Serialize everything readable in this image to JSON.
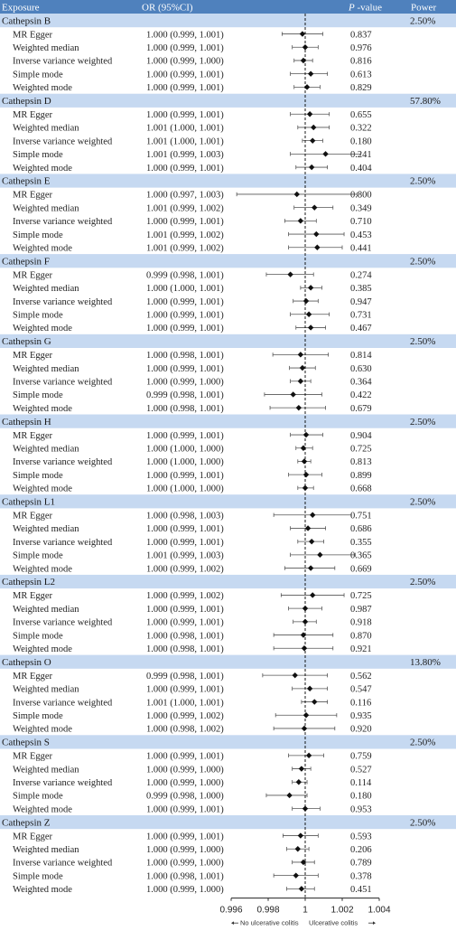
{
  "header": {
    "exposure": "Exposure",
    "or": "OR (95%CI)",
    "p_prefix": "P",
    "p_suffix": " -value",
    "power": "Power"
  },
  "chart_data": {
    "type": "scatter",
    "subtype": "forest",
    "xlim": [
      0.996,
      1.004
    ],
    "reference_line": 1,
    "ticks": [
      "0.996",
      "0.998",
      "1",
      "1.002",
      "1.004"
    ],
    "legend_left": "No ulcerative colitis",
    "legend_right": "Ulcerative colitis",
    "groups": [
      {
        "name": "Cathepsin B",
        "power": "2.50%",
        "rows": [
          {
            "method": "MR Egger",
            "or_text": "1.000 (0.999, 1.001)",
            "or": 0.99985,
            "lo": 0.99875,
            "hi": 1.00095,
            "p": "0.837"
          },
          {
            "method": "Weighted median",
            "or_text": "1.000 (0.999, 1.001)",
            "or": 1.0,
            "lo": 0.9993,
            "hi": 1.0007,
            "p": "0.976"
          },
          {
            "method": "Inverse variance weighted",
            "or_text": "1.000 (0.999, 1.000)",
            "or": 0.9999,
            "lo": 0.9994,
            "hi": 1.0004,
            "p": "0.816"
          },
          {
            "method": "Simple mode",
            "or_text": "1.000 (0.999, 1.001)",
            "or": 1.0003,
            "lo": 0.9992,
            "hi": 1.0012,
            "p": "0.613"
          },
          {
            "method": "Weighted mode",
            "or_text": "1.000 (0.999, 1.001)",
            "or": 1.0001,
            "lo": 0.9994,
            "hi": 1.0008,
            "p": "0.829"
          }
        ]
      },
      {
        "name": "Cathepsin D",
        "power": "57.80%",
        "rows": [
          {
            "method": "MR Egger",
            "or_text": "1.000 (0.999, 1.001)",
            "or": 1.00025,
            "lo": 0.9992,
            "hi": 1.0013,
            "p": "0.655"
          },
          {
            "method": "Weighted median",
            "or_text": "1.001 (1.000, 1.001)",
            "or": 1.00045,
            "lo": 0.9996,
            "hi": 1.0013,
            "p": "0.322"
          },
          {
            "method": "Inverse variance weighted",
            "or_text": "1.001 (1.000, 1.001)",
            "or": 1.0004,
            "lo": 0.99985,
            "hi": 1.00095,
            "p": "0.180"
          },
          {
            "method": "Simple mode",
            "or_text": "1.001 (0.999, 1.003)",
            "or": 1.0011,
            "lo": 0.9992,
            "hi": 1.003,
            "p": "0.241"
          },
          {
            "method": "Weighted mode",
            "or_text": "1.000 (0.999, 1.001)",
            "or": 1.00035,
            "lo": 0.9995,
            "hi": 1.0012,
            "p": "0.404"
          }
        ]
      },
      {
        "name": "Cathepsin E",
        "power": "2.50%",
        "rows": [
          {
            "method": "MR Egger",
            "or_text": "1.000 (0.997, 1.003)",
            "or": 0.99955,
            "lo": 0.9963,
            "hi": 1.0028,
            "p": "0.800"
          },
          {
            "method": "Weighted median",
            "or_text": "1.001 (0.999, 1.002)",
            "or": 1.0005,
            "lo": 0.9994,
            "hi": 1.0015,
            "p": "0.349"
          },
          {
            "method": "Inverse variance weighted",
            "or_text": "1.000 (0.999, 1.001)",
            "or": 0.99975,
            "lo": 0.9989,
            "hi": 1.0006,
            "p": "0.710"
          },
          {
            "method": "Simple mode",
            "or_text": "1.001 (0.999, 1.002)",
            "or": 1.0006,
            "lo": 0.9991,
            "hi": 1.0021,
            "p": "0.453"
          },
          {
            "method": "Weighted mode",
            "or_text": "1.001 (0.999, 1.002)",
            "or": 1.00065,
            "lo": 0.9991,
            "hi": 1.002,
            "p": "0.441"
          }
        ]
      },
      {
        "name": "Cathepsin F",
        "power": "2.50%",
        "rows": [
          {
            "method": "MR Egger",
            "or_text": "0.999 (0.998, 1.001)",
            "or": 0.9992,
            "lo": 0.9979,
            "hi": 1.00045,
            "p": "0.274"
          },
          {
            "method": "Weighted median",
            "or_text": "1.000 (1.000, 1.001)",
            "or": 1.0003,
            "lo": 0.99975,
            "hi": 1.0009,
            "p": "0.385"
          },
          {
            "method": "Inverse variance weighted",
            "or_text": "1.000 (0.999, 1.001)",
            "or": 1.00005,
            "lo": 0.99935,
            "hi": 1.0007,
            "p": "0.947"
          },
          {
            "method": "Simple mode",
            "or_text": "1.000 (0.999, 1.001)",
            "or": 1.0002,
            "lo": 0.9992,
            "hi": 1.0013,
            "p": "0.731"
          },
          {
            "method": "Weighted mode",
            "or_text": "1.000 (0.999, 1.001)",
            "or": 1.0003,
            "lo": 0.9995,
            "hi": 1.0011,
            "p": "0.467"
          }
        ]
      },
      {
        "name": "Cathepsin G",
        "power": "2.50%",
        "rows": [
          {
            "method": "MR Egger",
            "or_text": "1.000 (0.998, 1.001)",
            "or": 0.99975,
            "lo": 0.99825,
            "hi": 1.00125,
            "p": "0.814"
          },
          {
            "method": "Weighted median",
            "or_text": "1.000 (0.999, 1.001)",
            "or": 0.99985,
            "lo": 0.99915,
            "hi": 1.00055,
            "p": "0.630"
          },
          {
            "method": "Inverse variance weighted",
            "or_text": "1.000 (0.999, 1.000)",
            "or": 0.99975,
            "lo": 0.9992,
            "hi": 1.0003,
            "p": "0.364"
          },
          {
            "method": "Simple mode",
            "or_text": "0.999 (0.998, 1.001)",
            "or": 0.99935,
            "lo": 0.9978,
            "hi": 1.0009,
            "p": "0.422"
          },
          {
            "method": "Weighted mode",
            "or_text": "1.000 (0.998, 1.001)",
            "or": 0.99965,
            "lo": 0.9981,
            "hi": 1.0011,
            "p": "0.679"
          }
        ]
      },
      {
        "name": "Cathepsin H",
        "power": "2.50%",
        "rows": [
          {
            "method": "MR Egger",
            "or_text": "1.000 (0.999, 1.001)",
            "or": 1.00005,
            "lo": 0.9992,
            "hi": 1.00095,
            "p": "0.904"
          },
          {
            "method": "Weighted median",
            "or_text": "1.000 (1.000, 1.000)",
            "or": 0.9999,
            "lo": 0.9995,
            "hi": 1.0004,
            "p": "0.725"
          },
          {
            "method": "Inverse variance weighted",
            "or_text": "1.000 (1.000, 1.000)",
            "or": 0.99995,
            "lo": 0.9996,
            "hi": 1.0003,
            "p": "0.813"
          },
          {
            "method": "Simple mode",
            "or_text": "1.000 (0.999, 1.001)",
            "or": 1.00005,
            "lo": 0.9991,
            "hi": 1.0009,
            "p": "0.899"
          },
          {
            "method": "Weighted mode",
            "or_text": "1.000 (1.000, 1.000)",
            "or": 1.0,
            "lo": 0.9996,
            "hi": 1.00045,
            "p": "0.668"
          }
        ]
      },
      {
        "name": "Cathepsin L1",
        "power": "2.50%",
        "rows": [
          {
            "method": "MR Egger",
            "or_text": "1.000 (0.998, 1.003)",
            "or": 1.0004,
            "lo": 0.9983,
            "hi": 1.0025,
            "p": "0.751"
          },
          {
            "method": "Weighted median",
            "or_text": "1.000 (0.999, 1.001)",
            "or": 1.00015,
            "lo": 0.9992,
            "hi": 1.0011,
            "p": "0.686"
          },
          {
            "method": "Inverse variance weighted",
            "or_text": "1.000 (0.999, 1.001)",
            "or": 1.00035,
            "lo": 0.9996,
            "hi": 1.001,
            "p": "0.355"
          },
          {
            "method": "Simple mode",
            "or_text": "1.001 (0.999, 1.003)",
            "or": 1.0008,
            "lo": 0.9992,
            "hi": 1.0027,
            "p": "0.365"
          },
          {
            "method": "Weighted mode",
            "or_text": "1.000 (0.999, 1.002)",
            "or": 1.0003,
            "lo": 0.9989,
            "hi": 1.0016,
            "p": "0.669"
          }
        ]
      },
      {
        "name": "Cathepsin L2",
        "power": "2.50%",
        "rows": [
          {
            "method": "MR Egger",
            "or_text": "1.000 (0.999, 1.002)",
            "or": 1.0004,
            "lo": 0.9987,
            "hi": 1.0021,
            "p": "0.725"
          },
          {
            "method": "Weighted median",
            "or_text": "1.000 (0.999, 1.001)",
            "or": 1.0,
            "lo": 0.9991,
            "hi": 1.0009,
            "p": "0.987"
          },
          {
            "method": "Inverse variance weighted",
            "or_text": "1.000 (0.999, 1.001)",
            "or": 1.0,
            "lo": 0.99935,
            "hi": 1.0006,
            "p": "0.918"
          },
          {
            "method": "Simple mode",
            "or_text": "1.000 (0.998, 1.001)",
            "or": 0.9999,
            "lo": 0.9983,
            "hi": 1.0015,
            "p": "0.870"
          },
          {
            "method": "Weighted mode",
            "or_text": "1.000 (0.998, 1.001)",
            "or": 0.99995,
            "lo": 0.9983,
            "hi": 1.0015,
            "p": "0.921"
          }
        ]
      },
      {
        "name": "Cathepsin O",
        "power": "13.80%",
        "rows": [
          {
            "method": "MR Egger",
            "or_text": "0.999 (0.998, 1.001)",
            "or": 0.99945,
            "lo": 0.9977,
            "hi": 1.0012,
            "p": "0.562"
          },
          {
            "method": "Weighted median",
            "or_text": "1.000 (0.999, 1.001)",
            "or": 1.00025,
            "lo": 0.9993,
            "hi": 1.0012,
            "p": "0.547"
          },
          {
            "method": "Inverse variance weighted",
            "or_text": "1.001 (1.000, 1.001)",
            "or": 1.0005,
            "lo": 0.9998,
            "hi": 1.0012,
            "p": "0.116"
          },
          {
            "method": "Simple mode",
            "or_text": "1.000 (0.999, 1.002)",
            "or": 1.00005,
            "lo": 0.9984,
            "hi": 1.0017,
            "p": "0.935"
          },
          {
            "method": "Weighted mode",
            "or_text": "1.000 (0.998, 1.002)",
            "or": 0.99995,
            "lo": 0.9983,
            "hi": 1.0016,
            "p": "0.920"
          }
        ]
      },
      {
        "name": "Cathepsin S",
        "power": "2.50%",
        "rows": [
          {
            "method": "MR Egger",
            "or_text": "1.000 (0.999, 1.001)",
            "or": 1.0002,
            "lo": 0.9991,
            "hi": 1.001,
            "p": "0.759"
          },
          {
            "method": "Weighted median",
            "or_text": "1.000 (0.999, 1.000)",
            "or": 0.9998,
            "lo": 0.9993,
            "hi": 1.0003,
            "p": "0.527"
          },
          {
            "method": "Inverse variance weighted",
            "or_text": "1.000 (0.999, 1.000)",
            "or": 0.99965,
            "lo": 0.9993,
            "hi": 1.0001,
            "p": "0.114"
          },
          {
            "method": "Simple mode",
            "or_text": "0.999 (0.998, 1.000)",
            "or": 0.99915,
            "lo": 0.9979,
            "hi": 1.0001,
            "p": "0.180"
          },
          {
            "method": "Weighted mode",
            "or_text": "1.000 (0.999, 1.001)",
            "or": 1.0,
            "lo": 0.9993,
            "hi": 1.0008,
            "p": "0.953"
          }
        ]
      },
      {
        "name": "Cathepsin Z",
        "power": "2.50%",
        "rows": [
          {
            "method": "MR Egger",
            "or_text": "1.000 (0.999, 1.001)",
            "or": 0.99975,
            "lo": 0.9988,
            "hi": 1.0007,
            "p": "0.593"
          },
          {
            "method": "Weighted median",
            "or_text": "1.000 (0.999, 1.000)",
            "or": 0.9996,
            "lo": 0.999,
            "hi": 1.0002,
            "p": "0.206"
          },
          {
            "method": "Inverse variance weighted",
            "or_text": "1.000 (0.999, 1.000)",
            "or": 0.9999,
            "lo": 0.9993,
            "hi": 1.0005,
            "p": "0.789"
          },
          {
            "method": "Simple mode",
            "or_text": "1.000 (0.998, 1.001)",
            "or": 0.9995,
            "lo": 0.9983,
            "hi": 1.0007,
            "p": "0.378"
          },
          {
            "method": "Weighted mode",
            "or_text": "1.000 (0.999, 1.000)",
            "or": 0.9998,
            "lo": 0.999,
            "hi": 1.0005,
            "p": "0.451"
          }
        ]
      }
    ]
  }
}
